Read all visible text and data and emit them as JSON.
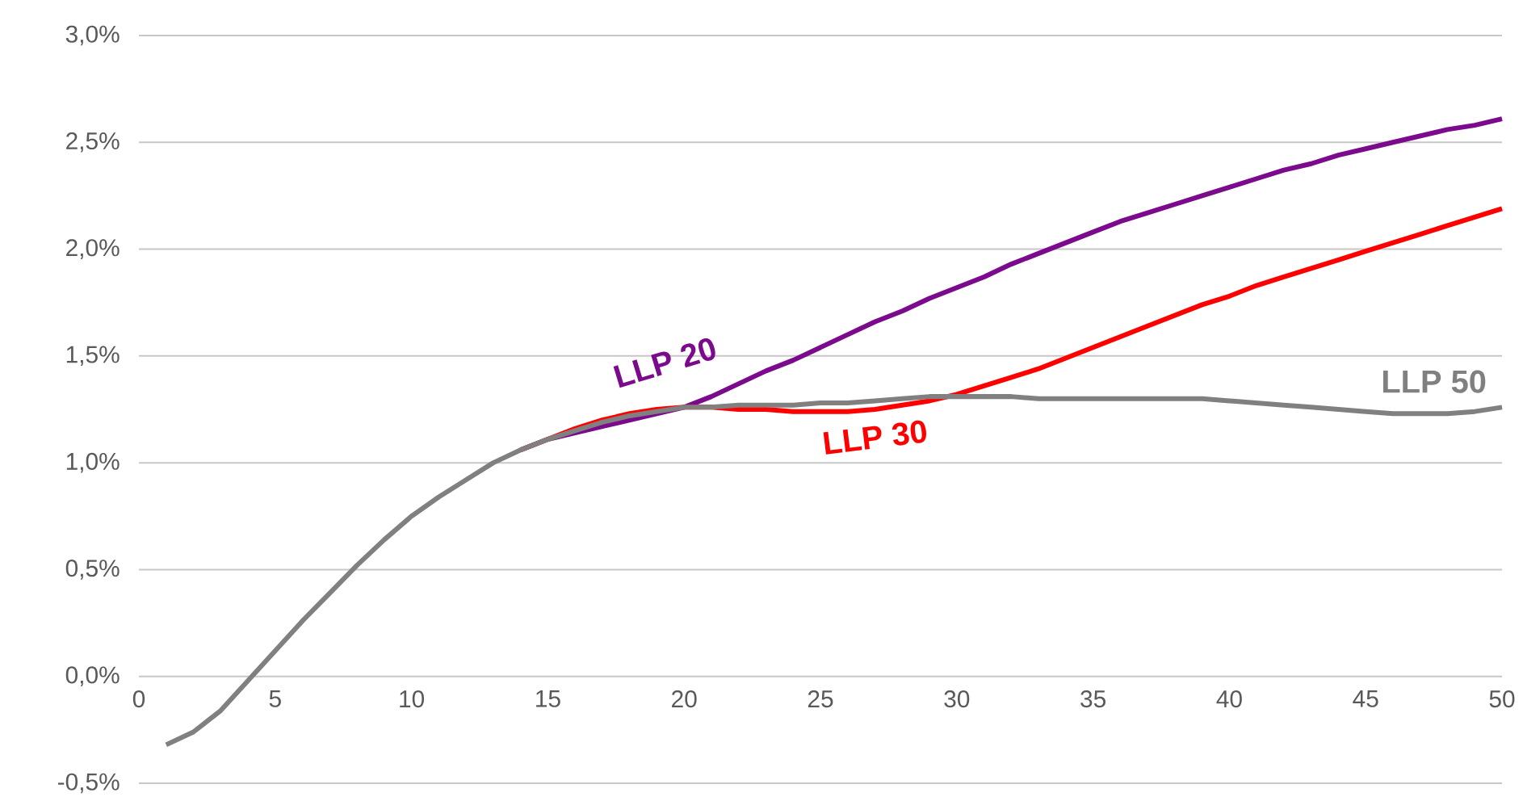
{
  "chart_data": {
    "type": "line",
    "x": [
      1,
      2,
      3,
      4,
      5,
      6,
      7,
      8,
      9,
      10,
      11,
      12,
      13,
      14,
      15,
      16,
      17,
      18,
      19,
      20,
      21,
      22,
      23,
      24,
      25,
      26,
      27,
      28,
      29,
      30,
      31,
      32,
      33,
      34,
      35,
      36,
      37,
      38,
      39,
      40,
      41,
      42,
      43,
      44,
      45,
      46,
      47,
      48,
      49,
      50
    ],
    "series": [
      {
        "name": "LLP 20",
        "color": "#7b0a8c",
        "values": [
          null,
          null,
          null,
          null,
          null,
          null,
          null,
          null,
          null,
          null,
          null,
          null,
          null,
          1.06,
          1.11,
          1.14,
          1.17,
          1.2,
          1.23,
          1.26,
          1.31,
          1.37,
          1.43,
          1.48,
          1.54,
          1.6,
          1.66,
          1.71,
          1.77,
          1.82,
          1.87,
          1.93,
          1.98,
          2.03,
          2.08,
          2.13,
          2.17,
          2.21,
          2.25,
          2.29,
          2.33,
          2.37,
          2.4,
          2.44,
          2.47,
          2.5,
          2.53,
          2.56,
          2.58,
          2.61
        ]
      },
      {
        "name": "LLP 30",
        "color": "#ff0000",
        "values": [
          null,
          null,
          null,
          null,
          null,
          null,
          null,
          null,
          null,
          null,
          null,
          null,
          null,
          1.06,
          1.11,
          1.16,
          1.2,
          1.23,
          1.25,
          1.26,
          1.26,
          1.25,
          1.25,
          1.24,
          1.24,
          1.24,
          1.25,
          1.27,
          1.29,
          1.32,
          1.36,
          1.4,
          1.44,
          1.49,
          1.54,
          1.59,
          1.64,
          1.69,
          1.74,
          1.78,
          1.83,
          1.87,
          1.91,
          1.95,
          1.99,
          2.03,
          2.07,
          2.11,
          2.15,
          2.19
        ]
      },
      {
        "name": "LLP 50",
        "color": "#808080",
        "values": [
          -0.32,
          -0.26,
          -0.16,
          -0.02,
          0.12,
          0.26,
          0.39,
          0.52,
          0.64,
          0.75,
          0.84,
          0.92,
          1.0,
          1.06,
          1.11,
          1.15,
          1.19,
          1.22,
          1.24,
          1.26,
          1.26,
          1.27,
          1.27,
          1.27,
          1.28,
          1.28,
          1.29,
          1.3,
          1.31,
          1.31,
          1.31,
          1.31,
          1.3,
          1.3,
          1.3,
          1.3,
          1.3,
          1.3,
          1.3,
          1.29,
          1.28,
          1.27,
          1.26,
          1.25,
          1.24,
          1.23,
          1.23,
          1.23,
          1.24,
          1.26
        ]
      }
    ],
    "xlim": [
      0,
      50
    ],
    "xticks": [
      0,
      5,
      10,
      15,
      20,
      25,
      30,
      35,
      40,
      45,
      50
    ],
    "ylim": [
      -0.5,
      3.0
    ],
    "yticks": [
      {
        "value": -0.5,
        "label": "-0,5%"
      },
      {
        "value": 0,
        "label": "0,0%"
      },
      {
        "value": 0.5,
        "label": "0,5%"
      },
      {
        "value": 1.0,
        "label": "1,0%"
      },
      {
        "value": 1.5,
        "label": "1,5%"
      },
      {
        "value": 2.0,
        "label": "2,0%"
      },
      {
        "value": 2.5,
        "label": "2,5%"
      },
      {
        "value": 3.0,
        "label": "3,0%"
      }
    ],
    "grid": "y",
    "legend": false,
    "marker": "none",
    "line_style": "solid"
  }
}
